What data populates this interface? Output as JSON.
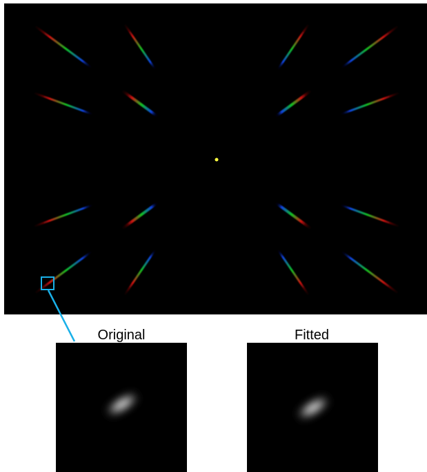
{
  "panels": [
    {
      "label": "Original"
    },
    {
      "label": "Fitted"
    }
  ]
}
